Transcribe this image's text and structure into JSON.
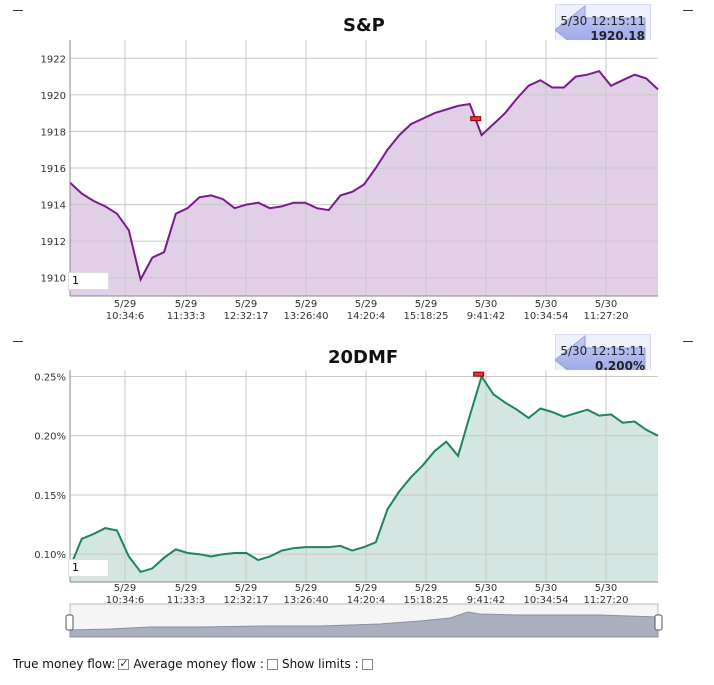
{
  "chart_data": [
    {
      "type": "area",
      "title": "S&P",
      "callout": {
        "time": "5/30 12:15:11",
        "value": "1920.18"
      },
      "input_value": "1",
      "ylim": [
        1909,
        1923
      ],
      "y_ticks": [
        1910,
        1912,
        1914,
        1916,
        1918,
        1920,
        1922
      ],
      "y_tick_labels": [
        "1910",
        "1912",
        "1914",
        "1916",
        "1918",
        "1920",
        "1922"
      ],
      "x_tick_dates": [
        "5/29",
        "5/29",
        "5/29",
        "5/29",
        "5/29",
        "5/29",
        "5/30",
        "5/30",
        "5/30"
      ],
      "x_tick_times": [
        "10:34:6",
        "11:33:3",
        "12:32:17",
        "13:26:40",
        "14:20:4",
        "15:18:25",
        "9:41:42",
        "10:34:54",
        "11:27:20"
      ],
      "x": [
        0,
        2,
        4,
        6,
        8,
        10,
        12,
        14,
        16,
        18,
        20,
        22,
        24,
        26,
        28,
        30,
        32,
        34,
        36,
        38,
        40,
        42,
        44,
        46,
        48,
        50,
        52,
        54,
        56,
        58,
        60,
        62,
        64,
        66,
        68,
        70,
        72,
        74,
        76,
        78,
        80,
        82,
        84,
        86,
        88,
        90,
        92,
        94,
        96,
        98,
        100
      ],
      "values": [
        1915.2,
        1914.6,
        1914.2,
        1913.9,
        1913.5,
        1912.6,
        1909.9,
        1911.1,
        1911.4,
        1913.5,
        1913.8,
        1914.4,
        1914.5,
        1914.3,
        1913.8,
        1914.0,
        1914.1,
        1913.8,
        1913.9,
        1914.1,
        1914.1,
        1913.8,
        1913.7,
        1914.5,
        1914.7,
        1915.1,
        1916.0,
        1917.0,
        1917.8,
        1918.4,
        1918.7,
        1919.0,
        1919.2,
        1919.4,
        1919.5,
        1917.8,
        1918.4,
        1919.0,
        1919.8,
        1920.5,
        1920.8,
        1920.4,
        1920.4,
        1921.0,
        1921.1,
        1921.3,
        1920.5,
        1920.8,
        1921.1,
        1920.9,
        1920.3
      ],
      "marker": {
        "x": 69,
        "y": 1918.7
      },
      "fill": "#e0cfe6",
      "line": "#7a1a8c"
    },
    {
      "type": "area",
      "title": "20DMF",
      "callout": {
        "time": "5/30 12:15:11",
        "value": "0.200%"
      },
      "input_value": "1",
      "ylim": [
        0.0765,
        0.2555
      ],
      "y_ticks": [
        0.1,
        0.15,
        0.2,
        0.25
      ],
      "y_tick_labels": [
        "0.10%",
        "0.15%",
        "0.20%",
        "0.25%"
      ],
      "x_tick_dates": [
        "5/29",
        "5/29",
        "5/29",
        "5/29",
        "5/29",
        "5/29",
        "5/30",
        "5/30",
        "5/30"
      ],
      "x_tick_times": [
        "10:34:6",
        "11:33:3",
        "12:32:17",
        "13:26:40",
        "14:20:4",
        "15:18:25",
        "9:41:42",
        "10:34:54",
        "11:27:20"
      ],
      "x": [
        0,
        2,
        4,
        6,
        8,
        10,
        12,
        14,
        16,
        18,
        20,
        22,
        24,
        26,
        28,
        30,
        32,
        34,
        36,
        38,
        40,
        42,
        44,
        46,
        48,
        50,
        52,
        54,
        56,
        58,
        60,
        62,
        64,
        66,
        68,
        70,
        72,
        74,
        76,
        78,
        80,
        82,
        84,
        86,
        88,
        90,
        92,
        94,
        96,
        98,
        100
      ],
      "values": [
        0.089,
        0.113,
        0.117,
        0.122,
        0.12,
        0.098,
        0.085,
        0.088,
        0.097,
        0.104,
        0.101,
        0.1,
        0.098,
        0.1,
        0.101,
        0.101,
        0.095,
        0.098,
        0.103,
        0.105,
        0.106,
        0.106,
        0.106,
        0.107,
        0.103,
        0.106,
        0.11,
        0.138,
        0.153,
        0.165,
        0.175,
        0.187,
        0.195,
        0.183,
        0.217,
        0.25,
        0.235,
        0.228,
        0.222,
        0.215,
        0.223,
        0.22,
        0.216,
        0.219,
        0.222,
        0.217,
        0.218,
        0.211,
        0.212,
        0.205,
        0.2
      ],
      "marker": {
        "x": 69.5,
        "y": 0.252
      },
      "fill": "#d3e6e1",
      "line": "#1c8460"
    }
  ],
  "legend": {
    "true_money_flow": "True money flow:",
    "average_money_flow": "Average money flow :",
    "show_limits": "Show limits :"
  }
}
